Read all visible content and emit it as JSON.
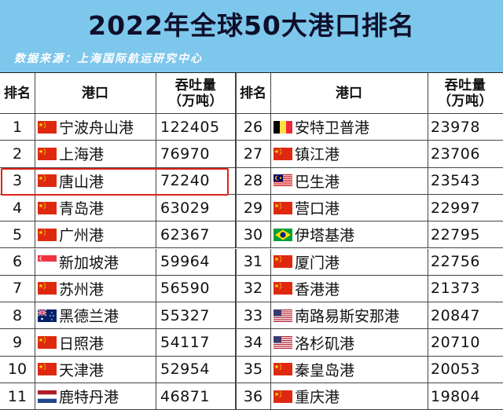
{
  "title": "2022年全球50大港口排名",
  "source": "数据来源：上海国际航运研究中心",
  "headers": {
    "rank": "排名",
    "port": "港口",
    "throughput_line1": "吞吐量",
    "throughput_line2": "（万吨）"
  },
  "highlighted_rank": 3,
  "rows": [
    {
      "left": {
        "rank": "1",
        "port": "宁波舟山港",
        "value": "122405",
        "flag": "cn"
      },
      "right": {
        "rank": "26",
        "port": "安特卫普港",
        "value": "23978",
        "flag": "be"
      }
    },
    {
      "left": {
        "rank": "2",
        "port": "上海港",
        "value": "76970",
        "flag": "cn"
      },
      "right": {
        "rank": "27",
        "port": "镇江港",
        "value": "23706",
        "flag": "cn"
      }
    },
    {
      "left": {
        "rank": "3",
        "port": "唐山港",
        "value": "72240",
        "flag": "cn"
      },
      "right": {
        "rank": "28",
        "port": "巴生港",
        "value": "23543",
        "flag": "my"
      }
    },
    {
      "left": {
        "rank": "4",
        "port": "青岛港",
        "value": "63029",
        "flag": "cn"
      },
      "right": {
        "rank": "29",
        "port": "营口港",
        "value": "22997",
        "flag": "cn"
      }
    },
    {
      "left": {
        "rank": "5",
        "port": "广州港",
        "value": "62367",
        "flag": "cn"
      },
      "right": {
        "rank": "30",
        "port": "伊塔基港",
        "value": "22795",
        "flag": "br"
      }
    },
    {
      "left": {
        "rank": "6",
        "port": "新加坡港",
        "value": "59964",
        "flag": "sg"
      },
      "right": {
        "rank": "31",
        "port": "厦门港",
        "value": "22756",
        "flag": "cn"
      }
    },
    {
      "left": {
        "rank": "7",
        "port": "苏州港",
        "value": "56590",
        "flag": "cn"
      },
      "right": {
        "rank": "32",
        "port": "香港港",
        "value": "21373",
        "flag": "cn"
      }
    },
    {
      "left": {
        "rank": "8",
        "port": "黑德兰港",
        "value": "55327",
        "flag": "au"
      },
      "right": {
        "rank": "33",
        "port": "南路易斯安那港",
        "value": "20847",
        "flag": "us"
      }
    },
    {
      "left": {
        "rank": "9",
        "port": "日照港",
        "value": "54117",
        "flag": "cn"
      },
      "right": {
        "rank": "34",
        "port": "洛杉矶港",
        "value": "20710",
        "flag": "us"
      }
    },
    {
      "left": {
        "rank": "10",
        "port": "天津港",
        "value": "52954",
        "flag": "cn"
      },
      "right": {
        "rank": "35",
        "port": "秦皇岛港",
        "value": "20053",
        "flag": "cn"
      }
    },
    {
      "left": {
        "rank": "11",
        "port": "鹿特丹港",
        "value": "46871",
        "flag": "nl"
      },
      "right": {
        "rank": "36",
        "port": "重庆港",
        "value": "19804",
        "flag": "cn"
      }
    }
  ]
}
